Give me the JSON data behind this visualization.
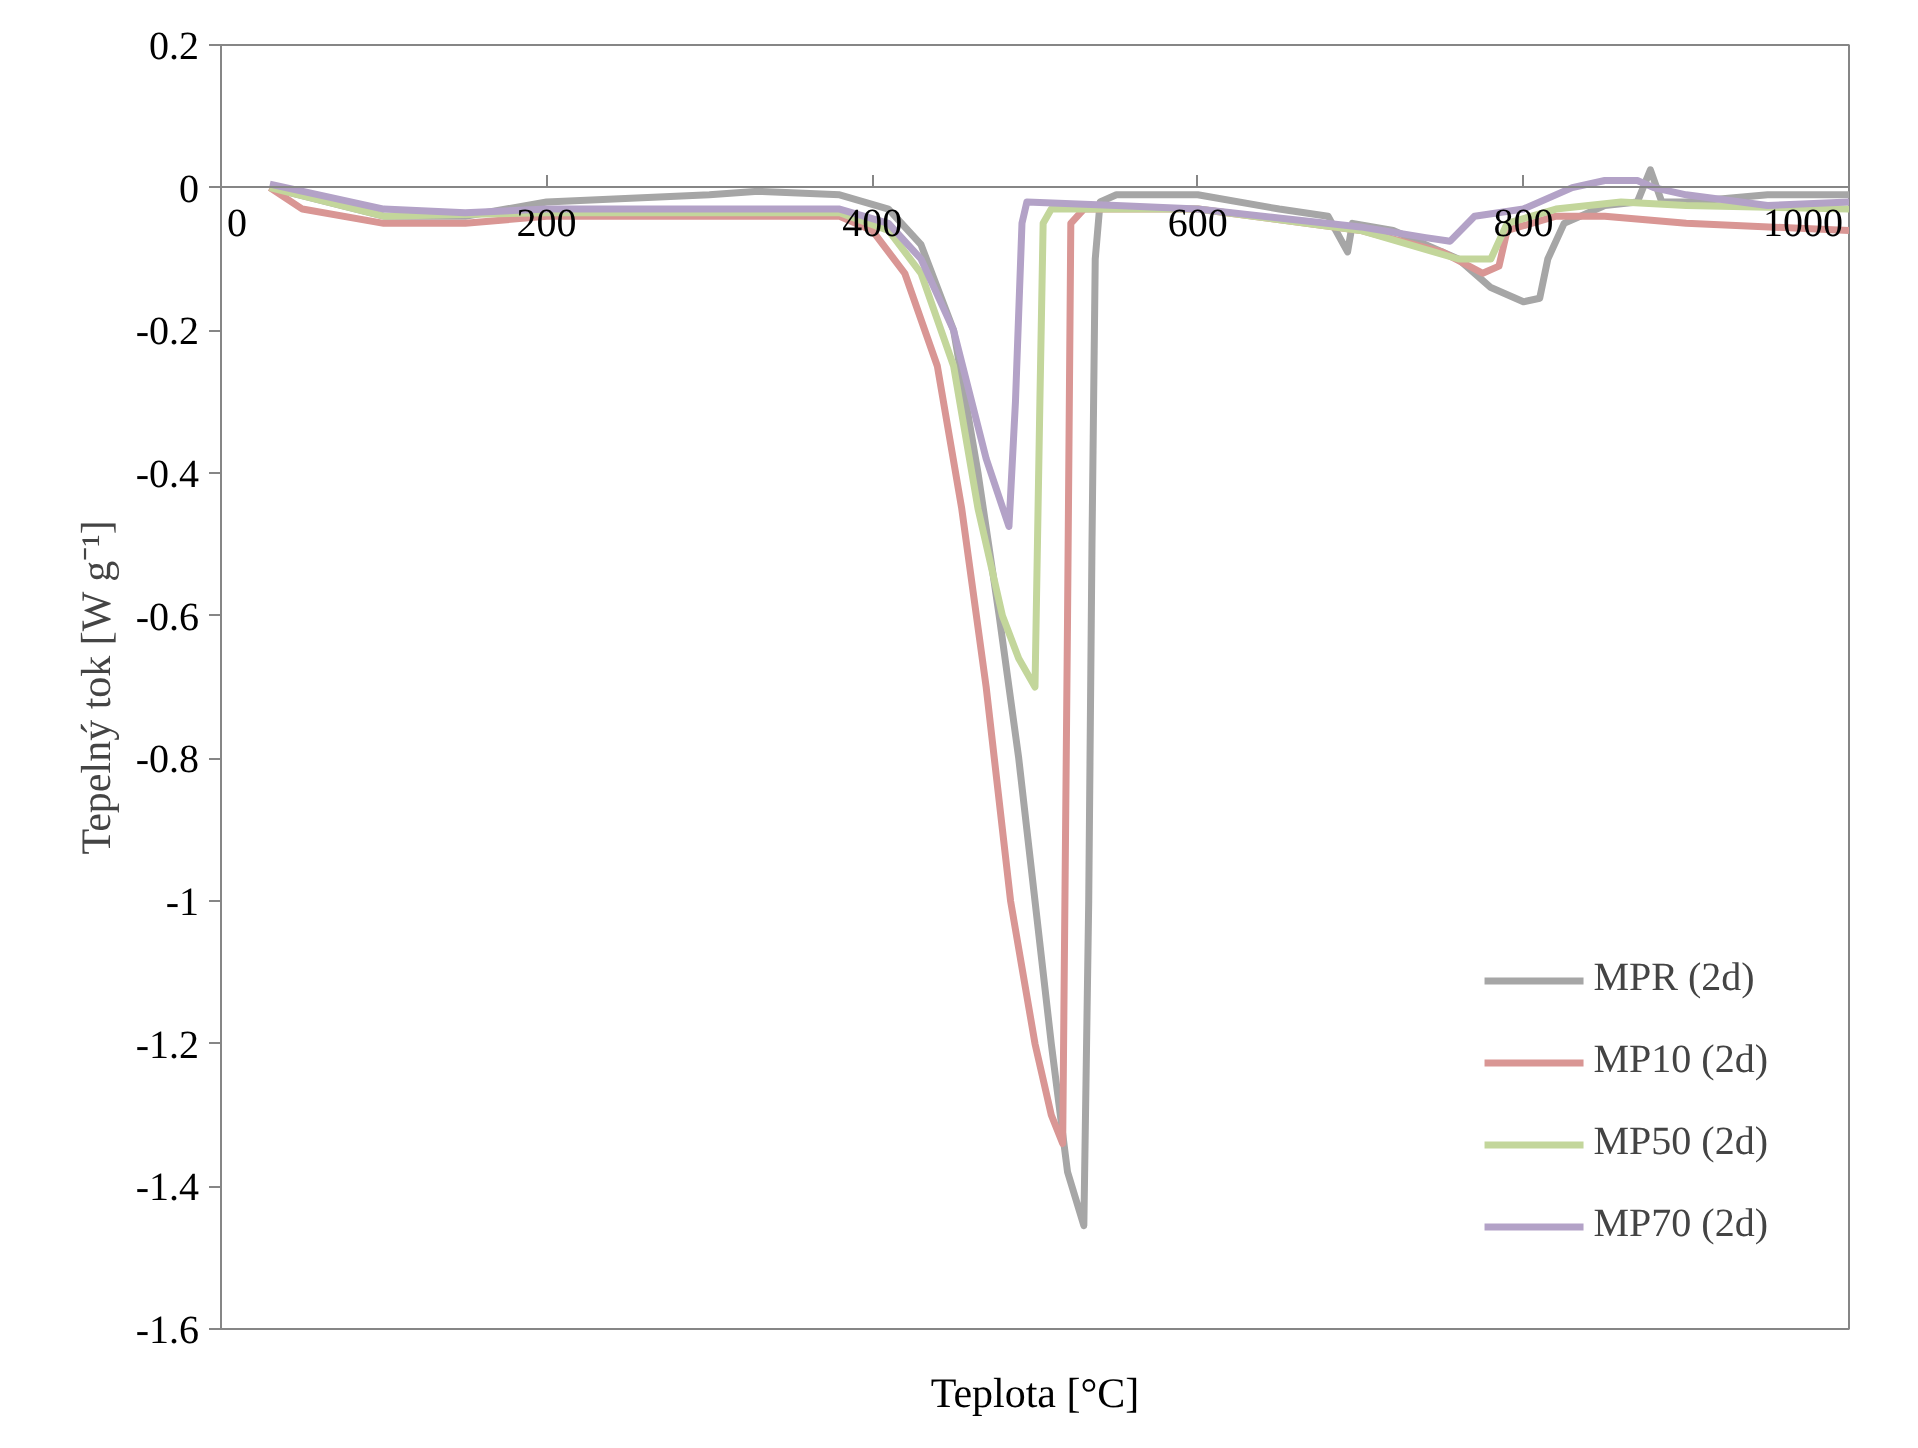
{
  "chart_data": {
    "type": "line",
    "xlabel": "Teplota [°C]",
    "ylabel": "Tepelný tok [W g⁻¹]",
    "xlim": [
      0,
      1000
    ],
    "ylim": [
      -1.6,
      0.2
    ],
    "xticks": [
      0,
      200,
      400,
      600,
      800,
      1000
    ],
    "yticks": [
      {
        "value": 0.2,
        "label": "0.2"
      },
      0,
      {
        "value": -0.2,
        "label": "-0.2"
      },
      {
        "value": -0.4,
        "label": "-0.4"
      },
      {
        "value": -0.6,
        "label": "-0.6"
      },
      {
        "value": -0.8,
        "label": "-0.8"
      },
      -1,
      {
        "value": -1.2,
        "label": "-1.2"
      },
      {
        "value": -1.4,
        "label": "-1.4"
      },
      {
        "value": -1.6,
        "label": "-1.6"
      }
    ],
    "grid": false,
    "legend": "bottom right",
    "marker": "none",
    "line_style": "solid",
    "series": [
      {
        "name": "MPR (2d)",
        "color": "#a6a6a6",
        "x": [
          30,
          100,
          150,
          200,
          300,
          330,
          380,
          410,
          430,
          450,
          465,
          478,
          490,
          500,
          510,
          520,
          530,
          533,
          535,
          537,
          540,
          550,
          600,
          650,
          680,
          692,
          695,
          720,
          760,
          780,
          800,
          810,
          815,
          825,
          850,
          870,
          878,
          885,
          900,
          950,
          1000
        ],
        "values": [
          0,
          -0.04,
          -0.04,
          -0.02,
          -0.01,
          -0.005,
          -0.01,
          -0.03,
          -0.08,
          -0.2,
          -0.4,
          -0.6,
          -0.8,
          -1.0,
          -1.2,
          -1.38,
          -1.455,
          -1.0,
          -0.5,
          -0.1,
          -0.02,
          -0.01,
          -0.01,
          -0.03,
          -0.04,
          -0.09,
          -0.05,
          -0.06,
          -0.1,
          -0.14,
          -0.16,
          -0.155,
          -0.1,
          -0.05,
          -0.025,
          -0.02,
          0.025,
          -0.02,
          -0.02,
          -0.01,
          -0.01
        ]
      },
      {
        "name": "MP10 (2d)",
        "color": "#d99694",
        "x": [
          30,
          50,
          100,
          150,
          200,
          300,
          380,
          400,
          420,
          440,
          455,
          470,
          485,
          500,
          510,
          517,
          520,
          522,
          530,
          600,
          700,
          750,
          775,
          785,
          790,
          820,
          850,
          900,
          1000
        ],
        "values": [
          0,
          -0.03,
          -0.05,
          -0.05,
          -0.04,
          -0.04,
          -0.04,
          -0.06,
          -0.12,
          -0.25,
          -0.45,
          -0.7,
          -1.0,
          -1.2,
          -1.3,
          -1.34,
          -0.6,
          -0.05,
          -0.03,
          -0.03,
          -0.06,
          -0.09,
          -0.12,
          -0.11,
          -0.06,
          -0.04,
          -0.04,
          -0.05,
          -0.06
        ]
      },
      {
        "name": "MP50 (2d)",
        "color": "#c3d69b",
        "x": [
          30,
          100,
          200,
          300,
          380,
          410,
          430,
          450,
          465,
          480,
          490,
          500,
          503,
          505,
          510,
          600,
          700,
          760,
          780,
          790,
          820,
          860,
          900,
          1000
        ],
        "values": [
          0,
          -0.04,
          -0.035,
          -0.035,
          -0.035,
          -0.06,
          -0.12,
          -0.25,
          -0.45,
          -0.6,
          -0.66,
          -0.7,
          -0.3,
          -0.05,
          -0.03,
          -0.03,
          -0.06,
          -0.1,
          -0.1,
          -0.05,
          -0.03,
          -0.02,
          -0.025,
          -0.03
        ]
      },
      {
        "name": "MP70 (2d)",
        "color": "#b3a2c7",
        "x": [
          30,
          100,
          150,
          200,
          300,
          380,
          410,
          430,
          450,
          470,
          484,
          488,
          492,
          495,
          550,
          600,
          700,
          740,
          755,
          770,
          800,
          830,
          850,
          870,
          880,
          900,
          950,
          1000
        ],
        "values": [
          0.005,
          -0.03,
          -0.035,
          -0.03,
          -0.03,
          -0.03,
          -0.05,
          -0.1,
          -0.2,
          -0.38,
          -0.475,
          -0.3,
          -0.05,
          -0.02,
          -0.025,
          -0.03,
          -0.055,
          -0.07,
          -0.075,
          -0.04,
          -0.03,
          0,
          0.01,
          0.01,
          0,
          -0.01,
          -0.025,
          -0.02
        ]
      }
    ]
  }
}
